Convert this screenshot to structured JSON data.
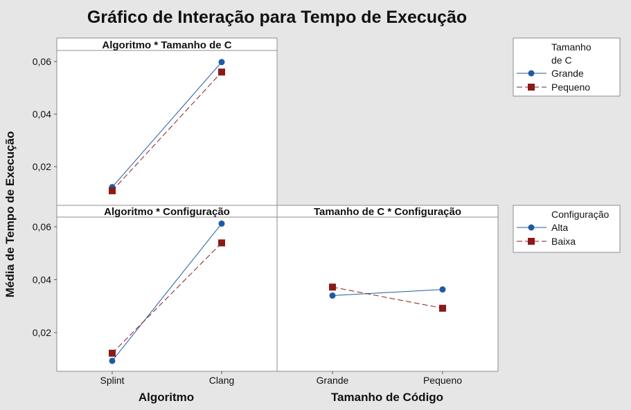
{
  "chart_data": {
    "type": "line",
    "title": "Gráfico de Interação para Tempo de Execução",
    "ylabel": "Média de Tempo de Execução",
    "ylim": [
      0.0,
      0.065
    ],
    "yticks": [
      "0,02",
      "0,04",
      "0,06"
    ],
    "ytick_values": [
      0.02,
      0.04,
      0.06
    ],
    "panels": [
      {
        "title": "Algoritmo * Tamanho de C",
        "categories": [
          "Splint",
          "Clang"
        ],
        "series": [
          {
            "name": "Grande",
            "values": [
              0.0122,
              0.0598
            ]
          },
          {
            "name": "Pequeno",
            "values": [
              0.0108,
              0.056
            ]
          }
        ]
      },
      {
        "title": "Algoritmo * Configuração",
        "categories": [
          "Splint",
          "Clang"
        ],
        "xlabel": "Algoritmo",
        "series": [
          {
            "name": "Alta",
            "values": [
              0.0093,
              0.0612
            ]
          },
          {
            "name": "Baixa",
            "values": [
              0.0122,
              0.0539
            ]
          }
        ]
      },
      {
        "title": "Tamanho de C * Configuração",
        "categories": [
          "Grande",
          "Pequeno"
        ],
        "xlabel": "Tamanho de Código",
        "series": [
          {
            "name": "Alta",
            "values": [
              0.034,
              0.0363
            ]
          },
          {
            "name": "Baixa",
            "values": [
              0.0372,
              0.0292
            ]
          }
        ]
      }
    ],
    "legends": [
      {
        "title_lines": [
          "Tamanho",
          "de C"
        ],
        "entries": [
          "Grande",
          "Pequeno"
        ]
      },
      {
        "title_lines": [
          "Configuração"
        ],
        "entries": [
          "Alta",
          "Baixa"
        ]
      }
    ],
    "colors": {
      "series1": "#1f5aa6",
      "series2": "#8b1a1a"
    },
    "grid": false
  }
}
